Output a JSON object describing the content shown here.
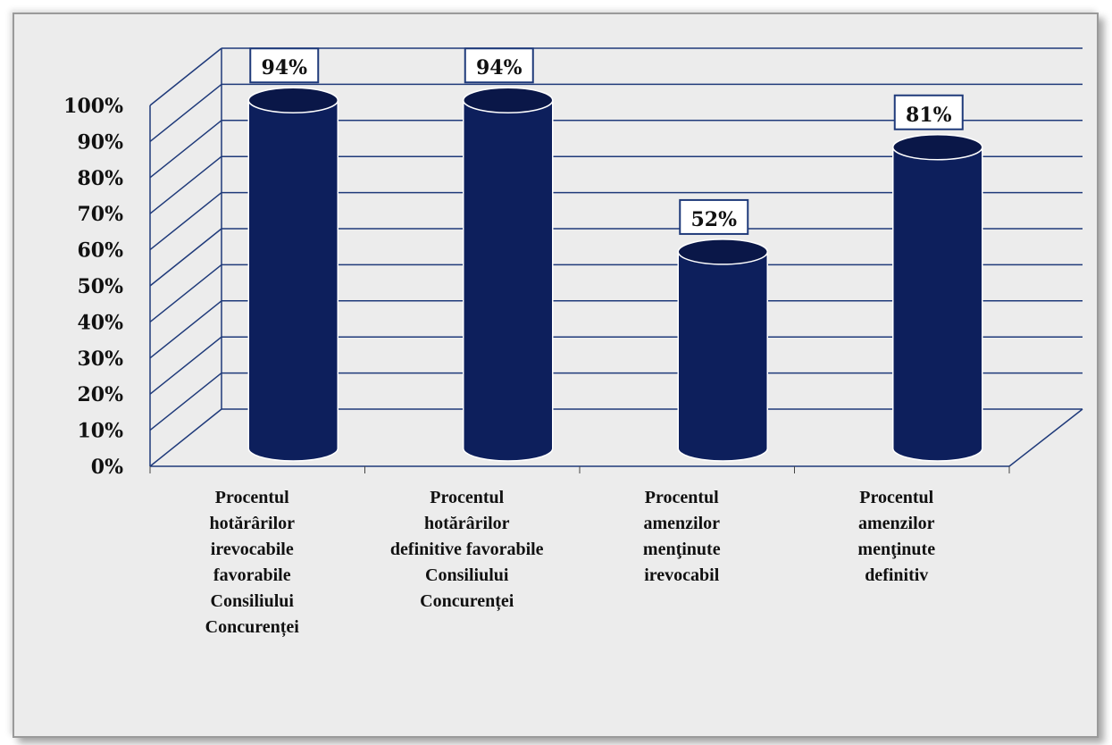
{
  "chart_data": {
    "type": "bar",
    "style": "3d-cylinder",
    "categories": [
      [
        "Procentul",
        "hotărârilor",
        "irevocabile",
        "favorabile",
        "Consiliului",
        "Concurenței"
      ],
      [
        "Procentul",
        "hotărârilor",
        "definitive favorabile",
        "Consiliului",
        "Concurenței"
      ],
      [
        "Procentul",
        "amenzilor",
        "menţinute",
        "irevocabil"
      ],
      [
        "Procentul",
        "amenzilor",
        "menţinute",
        "definitiv"
      ]
    ],
    "values": [
      94,
      94,
      52,
      81
    ],
    "data_labels": [
      "94%",
      "94%",
      "52%",
      "81%"
    ],
    "y_ticks": [
      "0%",
      "10%",
      "20%",
      "30%",
      "40%",
      "50%",
      "60%",
      "70%",
      "80%",
      "90%",
      "100%"
    ],
    "ylim": [
      0,
      100
    ],
    "grid": true,
    "legend": "none",
    "title": "",
    "xlabel": "",
    "ylabel": "",
    "colors": {
      "bar": "#0d1f5c",
      "bar_top": "#0a1748",
      "grid": "#1f3a7a",
      "background": "#ececec"
    }
  }
}
